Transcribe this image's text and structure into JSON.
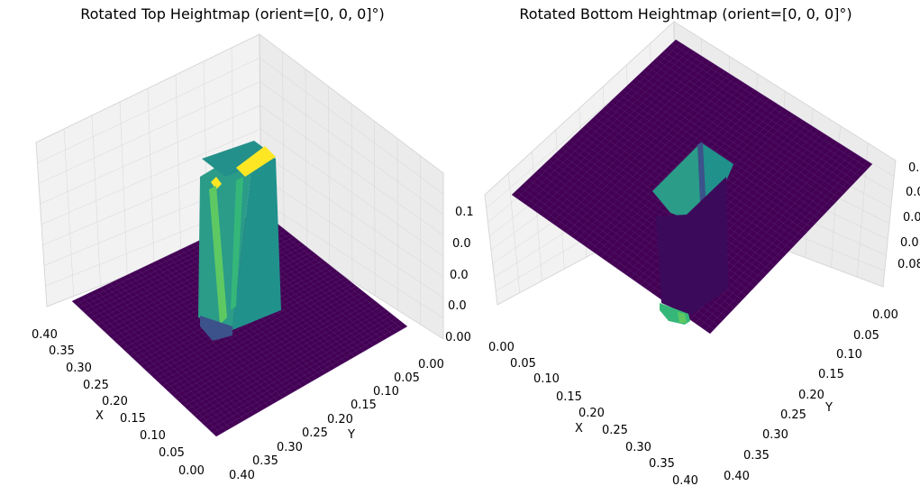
{
  "chart_data": [
    {
      "type": "surface3d",
      "title": "Rotated Top Heightmap (orient=[0, 0, 0]°)",
      "xlabel": "X",
      "ylabel": "Y",
      "zlabel": "",
      "colormap": "viridis",
      "x_ticks": [
        "0.40",
        "0.35",
        "0.30",
        "0.25",
        "0.20",
        "0.15",
        "0.10",
        "0.05",
        "0.00"
      ],
      "y_ticks": [
        "0.00",
        "0.05",
        "0.10",
        "0.15",
        "0.20",
        "0.25",
        "0.30",
        "0.35",
        "0.40"
      ],
      "z_ticks": [
        "0.00",
        "0.0",
        "0.0",
        "0.0",
        "0.1"
      ],
      "xlim": [
        0,
        0.42
      ],
      "ylim": [
        0,
        0.42
      ],
      "zlim": [
        0,
        0.14
      ],
      "base_height": 0.0,
      "block": {
        "x": [
          0.2,
          0.28
        ],
        "y": [
          0.15,
          0.22
        ],
        "height": 0.12
      },
      "grid": true
    },
    {
      "type": "surface3d",
      "title": "Rotated Bottom Heightmap (orient=[0, 0, 0]°)",
      "xlabel": "X",
      "ylabel": "Y",
      "zlabel": "",
      "colormap": "viridis",
      "x_ticks": [
        "0.00",
        "0.05",
        "0.10",
        "0.15",
        "0.20",
        "0.25",
        "0.30",
        "0.35",
        "0.40"
      ],
      "y_ticks": [
        "0.00",
        "0.05",
        "0.10",
        "0.15",
        "0.20",
        "0.25",
        "0.30",
        "0.35",
        "0.40"
      ],
      "z_ticks": [
        "0.08",
        "0.0",
        "0.0",
        "0.0",
        "0."
      ],
      "xlim": [
        0,
        0.42
      ],
      "ylim": [
        0,
        0.42
      ],
      "zlim": [
        0.08,
        0.16
      ],
      "base_height": 0.16,
      "block": {
        "x": [
          0.2,
          0.28
        ],
        "y": [
          0.15,
          0.22
        ],
        "height": 0.08
      },
      "grid": true
    }
  ],
  "colors": {
    "base": "#440154",
    "wall": "#21918c",
    "wall_light": "#35b779",
    "top": "#fde725",
    "pane": "#f2f2f2",
    "grid": "#cccccc"
  }
}
